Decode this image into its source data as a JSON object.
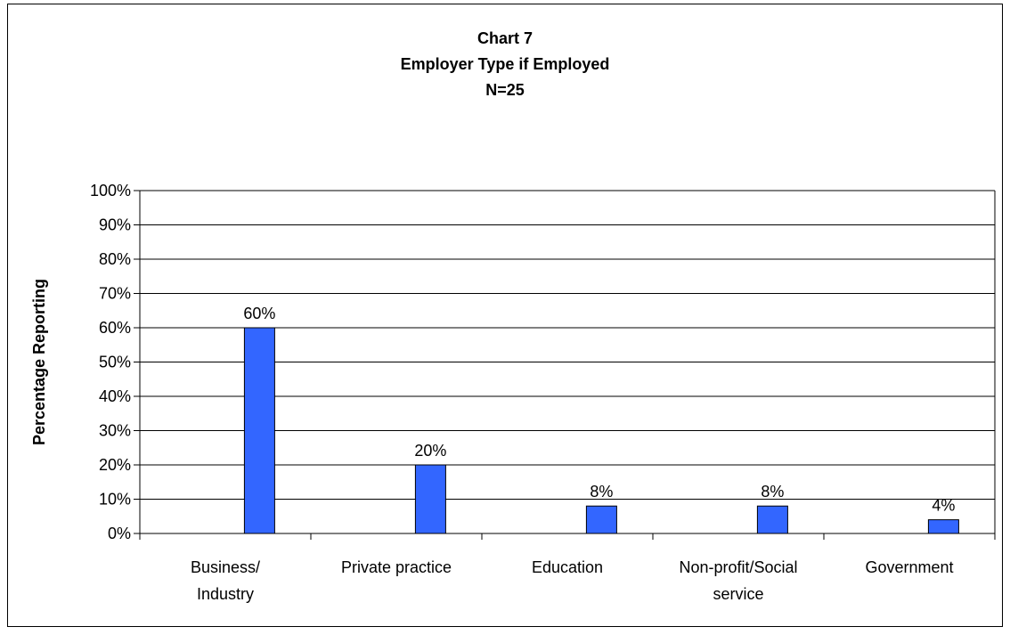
{
  "chart_data": {
    "type": "bar",
    "title": [
      "Chart 7",
      "Employer Type if Employed",
      "N=25"
    ],
    "ylabel": "Percentage Reporting",
    "xlabel": "",
    "ylim": [
      0,
      100
    ],
    "yticks": [
      0,
      10,
      20,
      30,
      40,
      50,
      60,
      70,
      80,
      90,
      100
    ],
    "ytick_labels": [
      "0%",
      "10%",
      "20%",
      "30%",
      "40%",
      "50%",
      "60%",
      "70%",
      "80%",
      "90%",
      "100%"
    ],
    "categories": [
      [
        "Business/",
        "Industry"
      ],
      [
        "Private practice"
      ],
      [
        "Education"
      ],
      [
        "Non-profit/Social",
        "service"
      ],
      [
        "Government"
      ]
    ],
    "values": [
      60,
      20,
      8,
      8,
      4
    ],
    "data_labels": [
      "60%",
      "20%",
      "8%",
      "8%",
      "4%"
    ],
    "bar_color": "#3366ff",
    "grid": true,
    "legend": "none"
  }
}
